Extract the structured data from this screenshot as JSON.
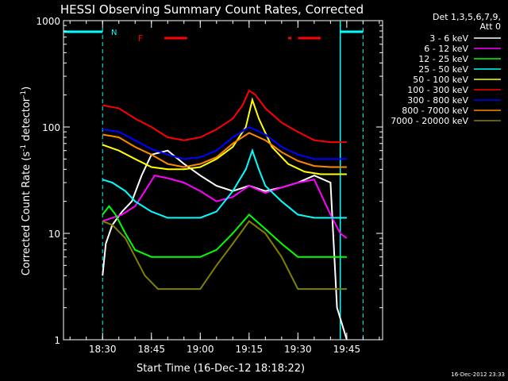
{
  "chart_data": {
    "type": "line",
    "title": "HESSI Observing Summary Count Rates, Corrected",
    "xlabel": "Start Time (16-Dec-12 18:18:22)",
    "ylabel_main": "Corrected Count Rate (s",
    "ylabel_sup1": "-1",
    "ylabel_mid": " detector",
    "ylabel_sup2": "-1",
    "ylabel_end": ")",
    "y_scale": "log",
    "ylim": [
      1,
      1000
    ],
    "xlim": [
      "18:18",
      "19:56"
    ],
    "x_ticks": [
      "18:30",
      "18:45",
      "19:00",
      "19:15",
      "19:30",
      "19:45"
    ],
    "y_ticks": [
      "1",
      "10",
      "100",
      "1000"
    ],
    "legend_header": [
      "Det 1,3,5,6,7,9,",
      "Att 0"
    ],
    "legend_placement": "right",
    "timestamp": "16-Dec-2012 23:33",
    "annotations": {
      "night_label": "N",
      "flare_label": "F"
    },
    "night_intervals": [
      [
        "18:18",
        "18:30"
      ],
      [
        "19:43",
        "19:50"
      ]
    ],
    "flare_intervals": [
      [
        "18:49",
        "18:56"
      ],
      [
        "19:27",
        "19:28"
      ],
      [
        "19:30",
        "19:37"
      ]
    ],
    "series": [
      {
        "name": "3 - 6 keV",
        "color": "#ffffff",
        "points": [
          [
            "18:30",
            4
          ],
          [
            "18:31",
            8
          ],
          [
            "18:33",
            12
          ],
          [
            "18:36",
            16
          ],
          [
            "18:39",
            20
          ],
          [
            "18:42",
            35
          ],
          [
            "18:45",
            55
          ],
          [
            "18:50",
            60
          ],
          [
            "18:55",
            45
          ],
          [
            "19:00",
            35
          ],
          [
            "19:05",
            28
          ],
          [
            "19:10",
            25
          ],
          [
            "19:15",
            28
          ],
          [
            "19:20",
            25
          ],
          [
            "19:25",
            27
          ],
          [
            "19:30",
            30
          ],
          [
            "19:35",
            35
          ],
          [
            "19:40",
            30
          ],
          [
            "19:42",
            2
          ],
          [
            "19:45",
            1
          ]
        ]
      },
      {
        "name": "6 - 12 keV",
        "color": "#ff00ff",
        "points": [
          [
            "18:30",
            13
          ],
          [
            "18:33",
            14
          ],
          [
            "18:36",
            15
          ],
          [
            "18:40",
            18
          ],
          [
            "18:43",
            25
          ],
          [
            "18:46",
            35
          ],
          [
            "18:50",
            33
          ],
          [
            "18:55",
            30
          ],
          [
            "19:00",
            25
          ],
          [
            "19:05",
            20
          ],
          [
            "19:10",
            22
          ],
          [
            "19:15",
            28
          ],
          [
            "19:20",
            24
          ],
          [
            "19:25",
            27
          ],
          [
            "19:30",
            30
          ],
          [
            "19:35",
            32
          ],
          [
            "19:40",
            15
          ],
          [
            "19:43",
            10
          ],
          [
            "19:45",
            9
          ]
        ]
      },
      {
        "name": "12 - 25 keV",
        "color": "#00ff00",
        "points": [
          [
            "18:30",
            15
          ],
          [
            "18:32",
            18
          ],
          [
            "18:34",
            15
          ],
          [
            "18:37",
            10
          ],
          [
            "18:40",
            7
          ],
          [
            "18:45",
            6
          ],
          [
            "18:50",
            6
          ],
          [
            "19:00",
            6
          ],
          [
            "19:05",
            7
          ],
          [
            "19:10",
            10
          ],
          [
            "19:15",
            15
          ],
          [
            "19:20",
            11
          ],
          [
            "19:25",
            8
          ],
          [
            "19:30",
            6
          ],
          [
            "19:35",
            6
          ],
          [
            "19:40",
            6
          ],
          [
            "19:45",
            6
          ]
        ]
      },
      {
        "name": "25 - 50 keV",
        "color": "#00ffff",
        "points": [
          [
            "18:30",
            32
          ],
          [
            "18:33",
            30
          ],
          [
            "18:37",
            25
          ],
          [
            "18:40",
            20
          ],
          [
            "18:45",
            16
          ],
          [
            "18:50",
            14
          ],
          [
            "19:00",
            14
          ],
          [
            "19:05",
            16
          ],
          [
            "19:10",
            25
          ],
          [
            "19:14",
            40
          ],
          [
            "19:16",
            60
          ],
          [
            "19:18",
            40
          ],
          [
            "19:20",
            28
          ],
          [
            "19:25",
            20
          ],
          [
            "19:30",
            15
          ],
          [
            "19:35",
            14
          ],
          [
            "19:40",
            14
          ],
          [
            "19:45",
            14
          ]
        ]
      },
      {
        "name": "50 - 100 keV",
        "color": "#ffff00",
        "points": [
          [
            "18:30",
            68
          ],
          [
            "18:35",
            60
          ],
          [
            "18:40",
            50
          ],
          [
            "18:45",
            42
          ],
          [
            "18:50",
            40
          ],
          [
            "18:55",
            40
          ],
          [
            "19:00",
            42
          ],
          [
            "19:05",
            50
          ],
          [
            "19:10",
            65
          ],
          [
            "19:14",
            100
          ],
          [
            "19:16",
            180
          ],
          [
            "19:18",
            120
          ],
          [
            "19:22",
            65
          ],
          [
            "19:27",
            45
          ],
          [
            "19:32",
            38
          ],
          [
            "19:37",
            36
          ],
          [
            "19:42",
            36
          ],
          [
            "19:45",
            36
          ]
        ]
      },
      {
        "name": "100 - 300 keV",
        "color": "#ff0000",
        "points": [
          [
            "18:30",
            160
          ],
          [
            "18:35",
            150
          ],
          [
            "18:40",
            120
          ],
          [
            "18:45",
            100
          ],
          [
            "18:50",
            80
          ],
          [
            "18:55",
            75
          ],
          [
            "19:00",
            80
          ],
          [
            "19:05",
            95
          ],
          [
            "19:10",
            120
          ],
          [
            "19:13",
            160
          ],
          [
            "19:15",
            220
          ],
          [
            "19:17",
            200
          ],
          [
            "19:20",
            150
          ],
          [
            "19:25",
            110
          ],
          [
            "19:30",
            90
          ],
          [
            "19:35",
            75
          ],
          [
            "19:40",
            72
          ],
          [
            "19:45",
            72
          ]
        ]
      },
      {
        "name": "300 - 800 keV",
        "color": "#0000ff",
        "points": [
          [
            "18:30",
            95
          ],
          [
            "18:35",
            90
          ],
          [
            "18:40",
            75
          ],
          [
            "18:45",
            62
          ],
          [
            "18:50",
            55
          ],
          [
            "18:55",
            50
          ],
          [
            "19:00",
            52
          ],
          [
            "19:05",
            60
          ],
          [
            "19:10",
            80
          ],
          [
            "19:15",
            100
          ],
          [
            "19:20",
            85
          ],
          [
            "19:25",
            65
          ],
          [
            "19:30",
            55
          ],
          [
            "19:35",
            50
          ],
          [
            "19:40",
            50
          ],
          [
            "19:45",
            50
          ]
        ]
      },
      {
        "name": "800 - 7000 keV",
        "color": "#ff8800",
        "points": [
          [
            "18:30",
            85
          ],
          [
            "18:35",
            80
          ],
          [
            "18:40",
            65
          ],
          [
            "18:45",
            55
          ],
          [
            "18:50",
            45
          ],
          [
            "18:55",
            42
          ],
          [
            "19:00",
            45
          ],
          [
            "19:05",
            52
          ],
          [
            "19:10",
            70
          ],
          [
            "19:15",
            88
          ],
          [
            "19:20",
            75
          ],
          [
            "19:25",
            58
          ],
          [
            "19:30",
            48
          ],
          [
            "19:35",
            43
          ],
          [
            "19:40",
            42
          ],
          [
            "19:45",
            42
          ]
        ]
      },
      {
        "name": "7000 - 20000 keV",
        "color": "#808000",
        "points": [
          [
            "18:30",
            13
          ],
          [
            "18:33",
            12
          ],
          [
            "18:37",
            9
          ],
          [
            "18:40",
            6
          ],
          [
            "18:43",
            4
          ],
          [
            "18:47",
            3
          ],
          [
            "18:55",
            3
          ],
          [
            "19:00",
            3
          ],
          [
            "19:05",
            5
          ],
          [
            "19:10",
            8
          ],
          [
            "19:15",
            13
          ],
          [
            "19:20",
            10
          ],
          [
            "19:25",
            6
          ],
          [
            "19:30",
            3
          ],
          [
            "19:35",
            3
          ],
          [
            "19:40",
            3
          ],
          [
            "19:45",
            3
          ]
        ]
      }
    ]
  }
}
